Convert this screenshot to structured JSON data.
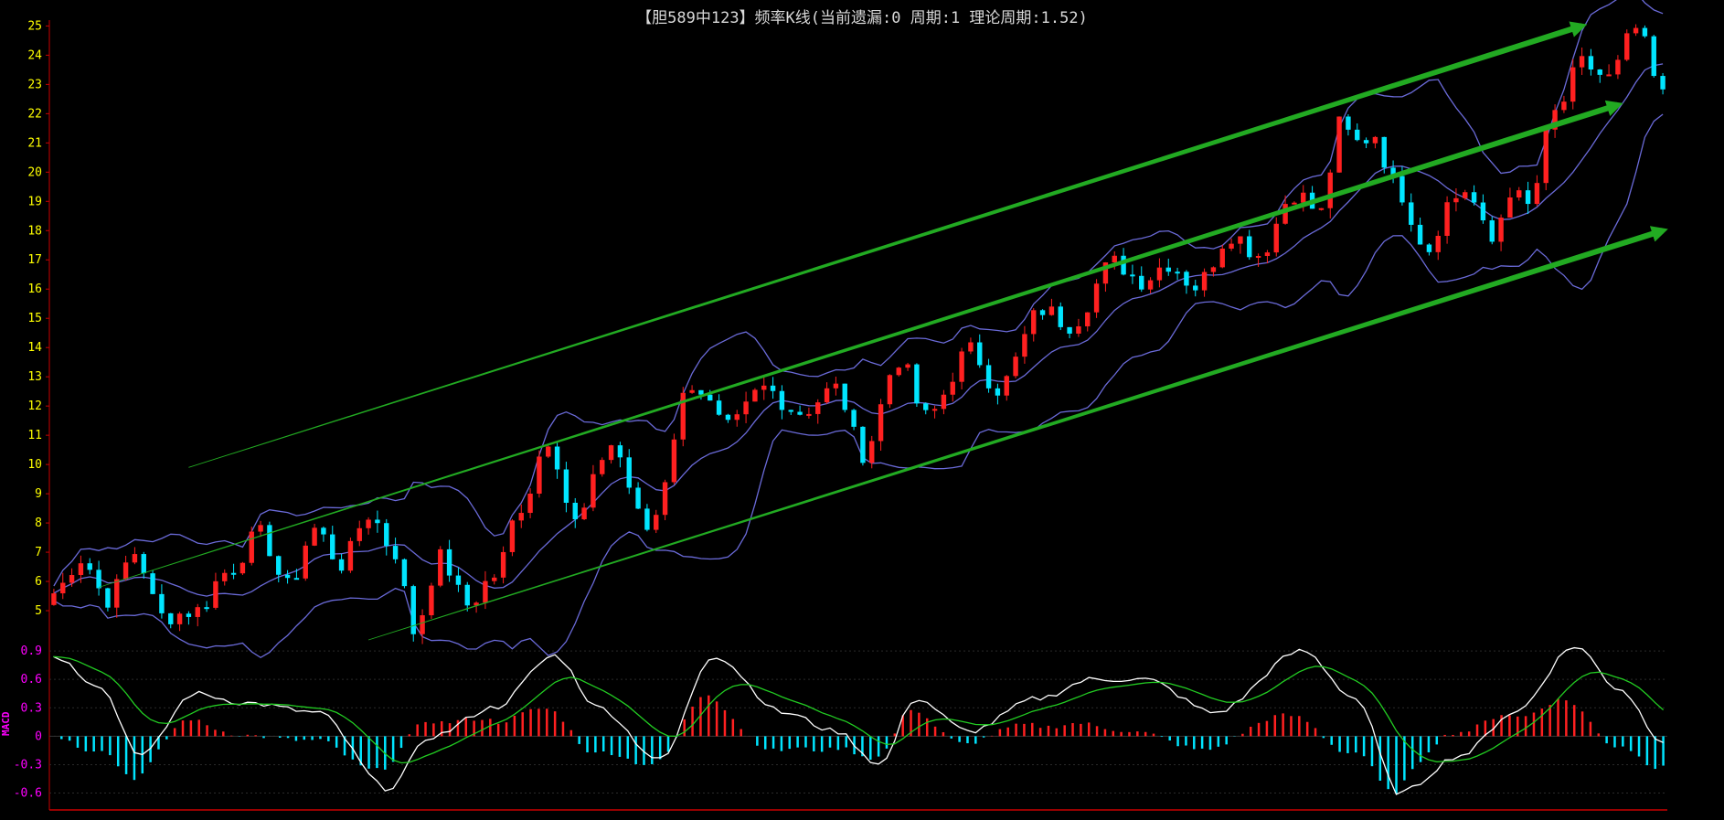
{
  "title": "【胆589中123】频率K线(当前遗漏:0 周期:1 理论周期:1.52)",
  "colors": {
    "background": "#000000",
    "axis_main": "#ffff00",
    "axis_sub": "#ff00ff",
    "axis_line": "#cc0000",
    "bull_candle": "#ff2020",
    "bear_candle": "#00e5ff",
    "band_line": "#6a6ad8",
    "channel": "#22aa22",
    "macd_dif": "#ffffff",
    "macd_dea": "#22cc22",
    "macd_pos": "#ff2020",
    "macd_neg": "#00e5ff"
  },
  "chart_data": [
    {
      "type": "candlestick",
      "yticks": [
        5,
        6,
        7,
        8,
        9,
        10,
        11,
        12,
        13,
        14,
        15,
        16,
        17,
        18,
        19,
        20,
        21,
        22,
        23,
        24,
        25
      ],
      "ylim": [
        4,
        25.2
      ],
      "x_count": 180,
      "overlays": [
        "upper band",
        "middle band",
        "lower band"
      ],
      "trend_channel_lines": [
        {
          "from": [
            15,
            9.9
          ],
          "to": [
            170,
            25
          ]
        },
        {
          "from": [
            5,
            5.8
          ],
          "to": [
            174,
            22.3
          ]
        },
        {
          "from": [
            35,
            4
          ],
          "to": [
            179,
            18
          ]
        }
      ],
      "closes_anchor": [
        [
          0,
          5.6
        ],
        [
          3,
          6.8
        ],
        [
          6,
          5.4
        ],
        [
          9,
          7.0
        ],
        [
          12,
          4.8
        ],
        [
          16,
          5.0
        ],
        [
          19,
          6.3
        ],
        [
          23,
          7.6
        ],
        [
          26,
          5.8
        ],
        [
          29,
          7.8
        ],
        [
          32,
          6.6
        ],
        [
          35,
          8.3
        ],
        [
          38,
          7.0
        ],
        [
          40,
          4.3
        ],
        [
          43,
          6.8
        ],
        [
          46,
          5.2
        ],
        [
          49,
          6.2
        ],
        [
          52,
          8.6
        ],
        [
          55,
          10.9
        ],
        [
          58,
          8.0
        ],
        [
          62,
          10.7
        ],
        [
          66,
          7.8
        ],
        [
          71,
          12.8
        ],
        [
          75,
          11.2
        ],
        [
          79,
          12.6
        ],
        [
          83,
          11.8
        ],
        [
          87,
          12.6
        ],
        [
          90,
          10.4
        ],
        [
          94,
          13.6
        ],
        [
          97,
          11.6
        ],
        [
          102,
          13.9
        ],
        [
          105,
          12.6
        ],
        [
          110,
          15.3
        ],
        [
          113,
          14.8
        ],
        [
          118,
          16.9
        ],
        [
          121,
          16.3
        ],
        [
          124,
          16.9
        ],
        [
          127,
          16.1
        ],
        [
          131,
          17.9
        ],
        [
          134,
          17.2
        ],
        [
          138,
          19.3
        ],
        [
          141,
          18.6
        ],
        [
          143,
          21.6
        ],
        [
          145,
          21.0
        ],
        [
          147,
          21.3
        ],
        [
          149,
          19.6
        ],
        [
          153,
          17.4
        ],
        [
          155,
          18.9
        ],
        [
          157,
          19.4
        ],
        [
          160,
          17.6
        ],
        [
          162,
          19.4
        ],
        [
          164,
          18.8
        ],
        [
          167,
          22.0
        ],
        [
          170,
          23.7
        ],
        [
          173,
          23.2
        ],
        [
          176,
          24.9
        ],
        [
          179,
          22.6
        ]
      ]
    },
    {
      "type": "macd",
      "yticks": [
        0.9,
        0.6,
        0.3,
        0,
        -0.3,
        -0.6
      ],
      "ylim": [
        -0.72,
        0.92
      ],
      "series_anchor_dif": [
        [
          0,
          0.85
        ],
        [
          5,
          0.55
        ],
        [
          10,
          -0.2
        ],
        [
          16,
          0.45
        ],
        [
          22,
          0.35
        ],
        [
          30,
          0.25
        ],
        [
          38,
          -0.55
        ],
        [
          43,
          0.0
        ],
        [
          50,
          0.3
        ],
        [
          57,
          0.85
        ],
        [
          62,
          0.3
        ],
        [
          69,
          -0.25
        ],
        [
          75,
          0.85
        ],
        [
          83,
          0.25
        ],
        [
          89,
          0.05
        ],
        [
          94,
          -0.3
        ],
        [
          98,
          0.4
        ],
        [
          104,
          0.05
        ],
        [
          112,
          0.4
        ],
        [
          118,
          0.6
        ],
        [
          124,
          0.6
        ],
        [
          132,
          0.25
        ],
        [
          142,
          0.9
        ],
        [
          148,
          0.4
        ],
        [
          153,
          -0.6
        ],
        [
          160,
          -0.2
        ],
        [
          166,
          0.25
        ],
        [
          173,
          0.95
        ],
        [
          178,
          0.5
        ],
        [
          183,
          -0.05
        ]
      ]
    }
  ]
}
